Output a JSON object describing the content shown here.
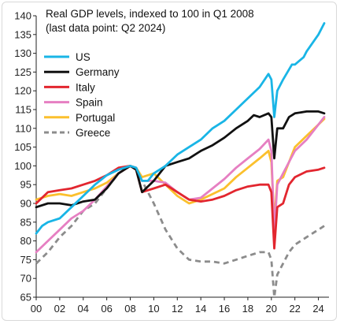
{
  "chart_data": {
    "type": "line",
    "title": "Real GDP levels, indexed to 100 in Q1 2008",
    "subtitle": "(last data point: Q2 2024)",
    "xlabel": "",
    "ylabel": "",
    "xlim": [
      2000,
      2024.9
    ],
    "ylim": [
      65,
      140
    ],
    "y_ticks": [
      65,
      70,
      75,
      80,
      85,
      90,
      95,
      100,
      105,
      110,
      115,
      120,
      125,
      130,
      135,
      140
    ],
    "x_ticks": [
      {
        "value": 2000,
        "label": "00"
      },
      {
        "value": 2002,
        "label": "02"
      },
      {
        "value": 2004,
        "label": "04"
      },
      {
        "value": 2006,
        "label": "06"
      },
      {
        "value": 2008,
        "label": "08"
      },
      {
        "value": 2010,
        "label": "10"
      },
      {
        "value": 2012,
        "label": "12"
      },
      {
        "value": 2014,
        "label": "14"
      },
      {
        "value": 2016,
        "label": "16"
      },
      {
        "value": 2018,
        "label": "18"
      },
      {
        "value": 2020,
        "label": "20"
      },
      {
        "value": 2022,
        "label": "22"
      },
      {
        "value": 2024,
        "label": "24"
      }
    ],
    "grid": false,
    "legend_position": "top-left",
    "series": [
      {
        "name": "US",
        "color": "#19b5e6",
        "dash": false,
        "points": [
          [
            2000,
            82
          ],
          [
            2000.5,
            84
          ],
          [
            2001,
            85
          ],
          [
            2002,
            86
          ],
          [
            2003,
            89
          ],
          [
            2004,
            92
          ],
          [
            2005,
            95
          ],
          [
            2006,
            97.5
          ],
          [
            2007,
            99
          ],
          [
            2008,
            100
          ],
          [
            2008.5,
            99.5
          ],
          [
            2009,
            96
          ],
          [
            2009.5,
            96
          ],
          [
            2010,
            98
          ],
          [
            2011,
            100
          ],
          [
            2012,
            103
          ],
          [
            2013,
            105
          ],
          [
            2014,
            107
          ],
          [
            2015,
            110
          ],
          [
            2016,
            112
          ],
          [
            2017,
            115
          ],
          [
            2018,
            118
          ],
          [
            2019,
            121
          ],
          [
            2019.75,
            124.5
          ],
          [
            2020,
            123
          ],
          [
            2020.25,
            113
          ],
          [
            2020.5,
            120
          ],
          [
            2021,
            123
          ],
          [
            2021.75,
            127
          ],
          [
            2022,
            127
          ],
          [
            2022.75,
            129
          ],
          [
            2023,
            130.5
          ],
          [
            2024,
            135
          ],
          [
            2024.5,
            138
          ]
        ]
      },
      {
        "name": "Germany",
        "color": "#111111",
        "dash": false,
        "points": [
          [
            2000,
            89
          ],
          [
            2001,
            90
          ],
          [
            2002,
            90
          ],
          [
            2003,
            89.5
          ],
          [
            2004,
            90.5
          ],
          [
            2005,
            91
          ],
          [
            2006,
            94
          ],
          [
            2007,
            98
          ],
          [
            2008,
            100
          ],
          [
            2008.5,
            99
          ],
          [
            2009,
            93
          ],
          [
            2010,
            96
          ],
          [
            2011,
            100
          ],
          [
            2012,
            101
          ],
          [
            2013,
            102
          ],
          [
            2014,
            104
          ],
          [
            2015,
            105.5
          ],
          [
            2016,
            107.5
          ],
          [
            2017,
            110
          ],
          [
            2018,
            112
          ],
          [
            2018.5,
            113.5
          ],
          [
            2019,
            113
          ],
          [
            2019.75,
            114
          ],
          [
            2020,
            113
          ],
          [
            2020.25,
            102
          ],
          [
            2020.5,
            110
          ],
          [
            2021,
            110
          ],
          [
            2021.5,
            113
          ],
          [
            2022,
            114
          ],
          [
            2023,
            114.5
          ],
          [
            2024,
            114.5
          ],
          [
            2024.5,
            114
          ]
        ]
      },
      {
        "name": "Italy",
        "color": "#e2262f",
        "dash": false,
        "points": [
          [
            2000,
            90
          ],
          [
            2001,
            93
          ],
          [
            2002,
            93.5
          ],
          [
            2003,
            94
          ],
          [
            2004,
            95
          ],
          [
            2005,
            96
          ],
          [
            2006,
            97.5
          ],
          [
            2007,
            99.5
          ],
          [
            2008,
            100
          ],
          [
            2008.5,
            99
          ],
          [
            2009,
            93
          ],
          [
            2010,
            94
          ],
          [
            2011,
            95
          ],
          [
            2012,
            93
          ],
          [
            2013,
            91
          ],
          [
            2014,
            90.5
          ],
          [
            2015,
            91
          ],
          [
            2016,
            92
          ],
          [
            2017,
            93.5
          ],
          [
            2018,
            94.5
          ],
          [
            2019,
            95
          ],
          [
            2019.75,
            95
          ],
          [
            2020,
            93
          ],
          [
            2020.25,
            78
          ],
          [
            2020.5,
            89
          ],
          [
            2021,
            90
          ],
          [
            2021.5,
            95
          ],
          [
            2022,
            97
          ],
          [
            2023,
            98.5
          ],
          [
            2024,
            99
          ],
          [
            2024.5,
            99.5
          ]
        ]
      },
      {
        "name": "Spain",
        "color": "#e67fc2",
        "dash": false,
        "points": [
          [
            2000,
            77
          ],
          [
            2001,
            80
          ],
          [
            2002,
            83
          ],
          [
            2003,
            86
          ],
          [
            2004,
            88
          ],
          [
            2005,
            91
          ],
          [
            2006,
            94.5
          ],
          [
            2007,
            98
          ],
          [
            2008,
            100
          ],
          [
            2008.5,
            99.5
          ],
          [
            2009,
            96
          ],
          [
            2010,
            96
          ],
          [
            2011,
            95.5
          ],
          [
            2012,
            93
          ],
          [
            2013,
            91
          ],
          [
            2014,
            91.5
          ],
          [
            2015,
            94
          ],
          [
            2016,
            96.5
          ],
          [
            2017,
            99.5
          ],
          [
            2018,
            102
          ],
          [
            2019,
            104.5
          ],
          [
            2019.75,
            107
          ],
          [
            2020,
            104
          ],
          [
            2020.25,
            82
          ],
          [
            2020.5,
            95
          ],
          [
            2021,
            98
          ],
          [
            2021.5,
            101
          ],
          [
            2022,
            104
          ],
          [
            2023,
            107
          ],
          [
            2024,
            111
          ],
          [
            2024.5,
            113
          ]
        ]
      },
      {
        "name": "Portugal",
        "color": "#fbc02d",
        "dash": false,
        "points": [
          [
            2000,
            91
          ],
          [
            2001,
            92
          ],
          [
            2002,
            92.5
          ],
          [
            2003,
            92
          ],
          [
            2004,
            93
          ],
          [
            2005,
            94
          ],
          [
            2006,
            95.5
          ],
          [
            2007,
            98
          ],
          [
            2008,
            100
          ],
          [
            2008.5,
            99.5
          ],
          [
            2009,
            97
          ],
          [
            2010,
            98
          ],
          [
            2011,
            95
          ],
          [
            2012,
            92
          ],
          [
            2013,
            90
          ],
          [
            2014,
            91
          ],
          [
            2015,
            92.5
          ],
          [
            2016,
            94
          ],
          [
            2017,
            97
          ],
          [
            2018,
            99.5
          ],
          [
            2019,
            102
          ],
          [
            2019.75,
            104
          ],
          [
            2020,
            101
          ],
          [
            2020.25,
            85
          ],
          [
            2020.5,
            96
          ],
          [
            2021,
            97
          ],
          [
            2021.5,
            101
          ],
          [
            2022,
            105
          ],
          [
            2023,
            108
          ],
          [
            2024,
            111
          ],
          [
            2024.5,
            112.5
          ]
        ]
      },
      {
        "name": "Greece",
        "color": "#8c8c8c",
        "dash": true,
        "points": [
          [
            2000,
            74
          ],
          [
            2001,
            77
          ],
          [
            2002,
            81
          ],
          [
            2003,
            84
          ],
          [
            2004,
            88
          ],
          [
            2005,
            90
          ],
          [
            2006,
            94
          ],
          [
            2007,
            98
          ],
          [
            2008,
            100
          ],
          [
            2008.5,
            99
          ],
          [
            2009,
            96
          ],
          [
            2010,
            90
          ],
          [
            2011,
            83
          ],
          [
            2012,
            78
          ],
          [
            2013,
            75
          ],
          [
            2014,
            74.5
          ],
          [
            2015,
            74.5
          ],
          [
            2016,
            74
          ],
          [
            2017,
            75
          ],
          [
            2018,
            76
          ],
          [
            2019,
            77
          ],
          [
            2019.75,
            77
          ],
          [
            2020,
            75
          ],
          [
            2020.25,
            65
          ],
          [
            2020.5,
            71
          ],
          [
            2021,
            74
          ],
          [
            2021.5,
            77
          ],
          [
            2022,
            79
          ],
          [
            2023,
            81
          ],
          [
            2024,
            83
          ],
          [
            2024.5,
            84
          ]
        ]
      }
    ]
  }
}
